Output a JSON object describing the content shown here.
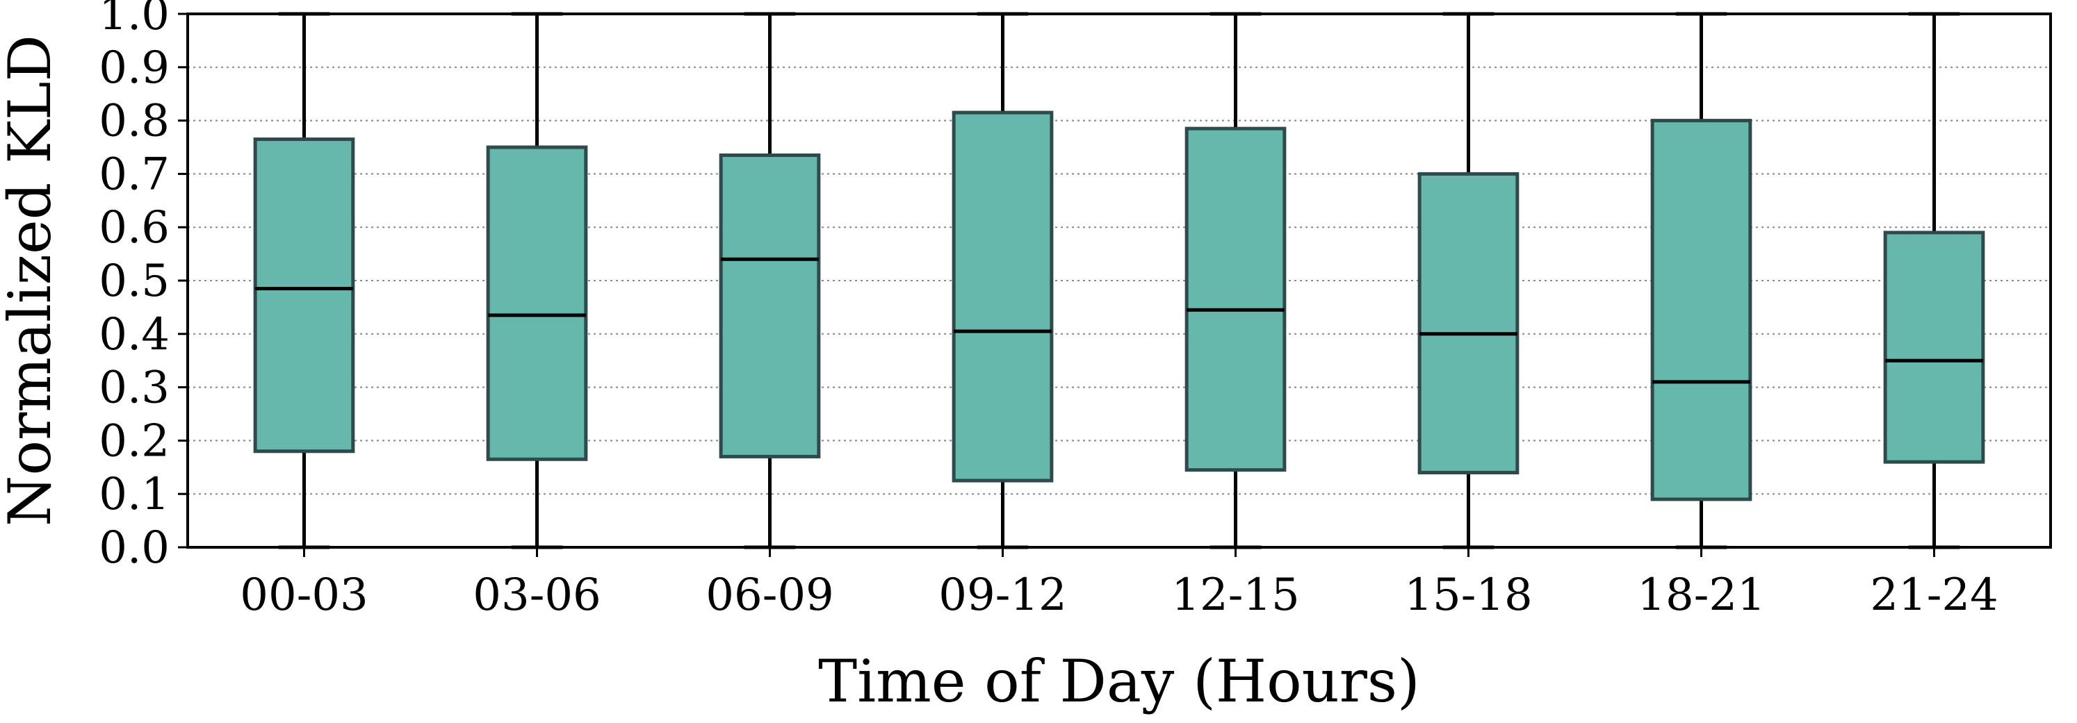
{
  "chart_data": {
    "type": "box",
    "xlabel": "Time of Day (Hours)",
    "ylabel": "Normalized KLD",
    "ylim": [
      0.0,
      1.0
    ],
    "grid": "horizontal-dotted",
    "categories": [
      "00-03",
      "03-06",
      "06-09",
      "09-12",
      "12-15",
      "15-18",
      "18-21",
      "21-24"
    ],
    "y_ticks": [
      "0.0",
      "0.1",
      "0.2",
      "0.3",
      "0.4",
      "0.5",
      "0.6",
      "0.7",
      "0.8",
      "0.9",
      "1.0"
    ],
    "box_color": "#66b8ac",
    "box_edge_color": "#2f4a4a",
    "boxes": [
      {
        "category": "00-03",
        "min": 0.0,
        "q1": 0.18,
        "median": 0.485,
        "q3": 0.765,
        "max": 1.0
      },
      {
        "category": "03-06",
        "min": 0.0,
        "q1": 0.165,
        "median": 0.435,
        "q3": 0.75,
        "max": 1.0
      },
      {
        "category": "06-09",
        "min": 0.0,
        "q1": 0.17,
        "median": 0.54,
        "q3": 0.735,
        "max": 1.0
      },
      {
        "category": "09-12",
        "min": 0.0,
        "q1": 0.125,
        "median": 0.405,
        "q3": 0.815,
        "max": 1.0
      },
      {
        "category": "12-15",
        "min": 0.0,
        "q1": 0.145,
        "median": 0.445,
        "q3": 0.785,
        "max": 1.0
      },
      {
        "category": "15-18",
        "min": 0.0,
        "q1": 0.14,
        "median": 0.4,
        "q3": 0.7,
        "max": 1.0
      },
      {
        "category": "18-21",
        "min": 0.0,
        "q1": 0.09,
        "median": 0.31,
        "q3": 0.8,
        "max": 1.0
      },
      {
        "category": "21-24",
        "min": 0.0,
        "q1": 0.16,
        "median": 0.35,
        "q3": 0.59,
        "max": 1.0
      }
    ]
  }
}
